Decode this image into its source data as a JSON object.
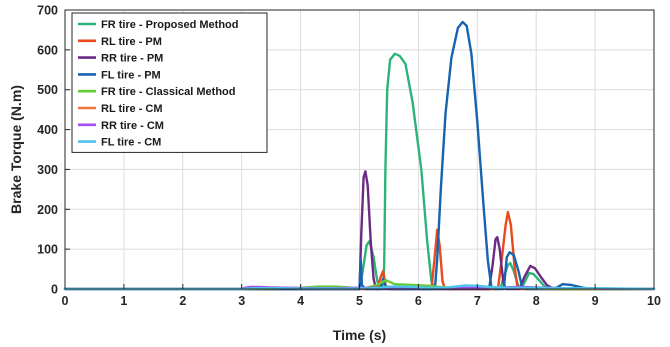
{
  "chart_data": {
    "type": "line",
    "xlabel": "Time (s)",
    "ylabel": "Brake Torque (N.m)",
    "xlim": [
      0,
      10
    ],
    "ylim": [
      0,
      700
    ],
    "xticks": [
      "0",
      "1",
      "2",
      "3",
      "4",
      "5",
      "6",
      "7",
      "8",
      "9",
      "10"
    ],
    "yticks": [
      "0",
      "100",
      "200",
      "300",
      "400",
      "500",
      "600",
      "700"
    ],
    "grid": true,
    "legend_position": "top-left",
    "series": [
      {
        "name": "FR tire - Proposed Method",
        "color": "#2db37a",
        "points": [
          [
            0,
            0
          ],
          [
            5.0,
            0
          ],
          [
            5.05,
            40
          ],
          [
            5.12,
            110
          ],
          [
            5.17,
            120
          ],
          [
            5.24,
            80
          ],
          [
            5.3,
            20
          ],
          [
            5.35,
            3
          ],
          [
            5.4,
            3
          ],
          [
            5.42,
            60
          ],
          [
            5.44,
            300
          ],
          [
            5.47,
            500
          ],
          [
            5.52,
            575
          ],
          [
            5.6,
            590
          ],
          [
            5.68,
            585
          ],
          [
            5.78,
            565
          ],
          [
            5.9,
            470
          ],
          [
            6.05,
            300
          ],
          [
            6.15,
            120
          ],
          [
            6.22,
            20
          ],
          [
            6.27,
            0
          ],
          [
            7.3,
            0
          ],
          [
            7.4,
            5
          ],
          [
            7.45,
            30
          ],
          [
            7.52,
            60
          ],
          [
            7.56,
            65
          ],
          [
            7.62,
            45
          ],
          [
            7.68,
            15
          ],
          [
            7.72,
            0
          ],
          [
            7.78,
            10
          ],
          [
            7.88,
            40
          ],
          [
            7.95,
            38
          ],
          [
            8.05,
            22
          ],
          [
            8.15,
            5
          ],
          [
            8.3,
            0
          ],
          [
            10,
            0
          ]
        ]
      },
      {
        "name": "RL tire - PM",
        "color": "#e84a1c",
        "points": [
          [
            0,
            0
          ],
          [
            5.3,
            0
          ],
          [
            5.36,
            30
          ],
          [
            5.4,
            45
          ],
          [
            5.45,
            5
          ],
          [
            5.5,
            0
          ],
          [
            6.22,
            0
          ],
          [
            6.27,
            70
          ],
          [
            6.32,
            148
          ],
          [
            6.36,
            110
          ],
          [
            6.41,
            20
          ],
          [
            6.45,
            0
          ],
          [
            7.35,
            0
          ],
          [
            7.42,
            80
          ],
          [
            7.48,
            160
          ],
          [
            7.52,
            193
          ],
          [
            7.57,
            160
          ],
          [
            7.63,
            60
          ],
          [
            7.68,
            5
          ],
          [
            7.72,
            0
          ],
          [
            10,
            0
          ]
        ]
      },
      {
        "name": "RR tire - PM",
        "color": "#6b2a86",
        "points": [
          [
            0,
            0
          ],
          [
            5.0,
            0
          ],
          [
            5.03,
            140
          ],
          [
            5.07,
            280
          ],
          [
            5.1,
            295
          ],
          [
            5.14,
            260
          ],
          [
            5.19,
            120
          ],
          [
            5.24,
            25
          ],
          [
            5.28,
            0
          ],
          [
            7.2,
            0
          ],
          [
            7.26,
            60
          ],
          [
            7.31,
            125
          ],
          [
            7.34,
            130
          ],
          [
            7.38,
            100
          ],
          [
            7.44,
            20
          ],
          [
            7.48,
            0
          ],
          [
            7.72,
            0
          ],
          [
            7.8,
            30
          ],
          [
            7.9,
            58
          ],
          [
            7.98,
            52
          ],
          [
            8.08,
            30
          ],
          [
            8.18,
            10
          ],
          [
            8.3,
            0
          ],
          [
            10,
            0
          ]
        ]
      },
      {
        "name": "FL tire - PM",
        "color": "#1763b0",
        "points": [
          [
            0,
            0
          ],
          [
            5.0,
            0
          ],
          [
            5.02,
            75
          ],
          [
            5.04,
            10
          ],
          [
            5.1,
            0
          ],
          [
            5.35,
            0
          ],
          [
            5.4,
            25
          ],
          [
            5.45,
            5
          ],
          [
            5.5,
            0
          ],
          [
            6.28,
            0
          ],
          [
            6.32,
            75
          ],
          [
            6.38,
            250
          ],
          [
            6.46,
            440
          ],
          [
            6.56,
            580
          ],
          [
            6.67,
            655
          ],
          [
            6.75,
            670
          ],
          [
            6.82,
            660
          ],
          [
            6.9,
            590
          ],
          [
            7.0,
            420
          ],
          [
            7.1,
            220
          ],
          [
            7.18,
            70
          ],
          [
            7.24,
            5
          ],
          [
            7.3,
            0
          ],
          [
            7.45,
            0
          ],
          [
            7.5,
            80
          ],
          [
            7.55,
            92
          ],
          [
            7.62,
            85
          ],
          [
            7.7,
            45
          ],
          [
            7.76,
            5
          ],
          [
            7.82,
            0
          ],
          [
            8.3,
            0
          ],
          [
            8.45,
            12
          ],
          [
            8.6,
            10
          ],
          [
            8.8,
            3
          ],
          [
            9.0,
            0
          ],
          [
            10,
            0
          ]
        ]
      },
      {
        "name": "FR tire - Classical Method",
        "color": "#66cc33",
        "points": [
          [
            0,
            0
          ],
          [
            3.0,
            0
          ],
          [
            3.5,
            1
          ],
          [
            4.0,
            3
          ],
          [
            4.3,
            6
          ],
          [
            4.6,
            6
          ],
          [
            4.9,
            3
          ],
          [
            5.1,
            2
          ],
          [
            5.3,
            10
          ],
          [
            5.45,
            22
          ],
          [
            5.6,
            12
          ],
          [
            5.9,
            10
          ],
          [
            6.2,
            8
          ],
          [
            6.35,
            5
          ],
          [
            6.6,
            3
          ],
          [
            7.0,
            2
          ],
          [
            7.5,
            2
          ],
          [
            8.0,
            1
          ],
          [
            8.6,
            0
          ],
          [
            10,
            0
          ]
        ]
      },
      {
        "name": "RL tire - CM",
        "color": "#f2773d",
        "points": [
          [
            0,
            0
          ],
          [
            3.0,
            0
          ],
          [
            3.2,
            2
          ],
          [
            3.6,
            3
          ],
          [
            4.0,
            2
          ],
          [
            4.6,
            1
          ],
          [
            5.2,
            2
          ],
          [
            5.6,
            3
          ],
          [
            6.2,
            2
          ],
          [
            7.0,
            2
          ],
          [
            7.6,
            3
          ],
          [
            8.2,
            2
          ],
          [
            9.0,
            1
          ],
          [
            10,
            0
          ]
        ]
      },
      {
        "name": "RR tire - CM",
        "color": "#a64df0",
        "points": [
          [
            0,
            0
          ],
          [
            3.0,
            0
          ],
          [
            3.05,
            3
          ],
          [
            3.15,
            5
          ],
          [
            3.3,
            5
          ],
          [
            3.5,
            4
          ],
          [
            3.8,
            3
          ],
          [
            4.2,
            2
          ],
          [
            4.6,
            2
          ],
          [
            5.0,
            3
          ],
          [
            5.4,
            3
          ],
          [
            6.0,
            2
          ],
          [
            6.6,
            3
          ],
          [
            7.2,
            3
          ],
          [
            7.7,
            5
          ],
          [
            8.0,
            4
          ],
          [
            8.5,
            2
          ],
          [
            9.0,
            1
          ],
          [
            10,
            0
          ]
        ]
      },
      {
        "name": "FL tire - CM",
        "color": "#4dc4ee",
        "points": [
          [
            0,
            0
          ],
          [
            3.0,
            0
          ],
          [
            3.2,
            2
          ],
          [
            3.6,
            2
          ],
          [
            4.2,
            1
          ],
          [
            4.8,
            1
          ],
          [
            5.3,
            2
          ],
          [
            5.5,
            6
          ],
          [
            5.8,
            6
          ],
          [
            6.2,
            3
          ],
          [
            6.5,
            4
          ],
          [
            6.8,
            9
          ],
          [
            7.0,
            8
          ],
          [
            7.2,
            5
          ],
          [
            7.6,
            3
          ],
          [
            8.0,
            3
          ],
          [
            8.5,
            2
          ],
          [
            9.0,
            2
          ],
          [
            10,
            0
          ]
        ]
      }
    ]
  }
}
